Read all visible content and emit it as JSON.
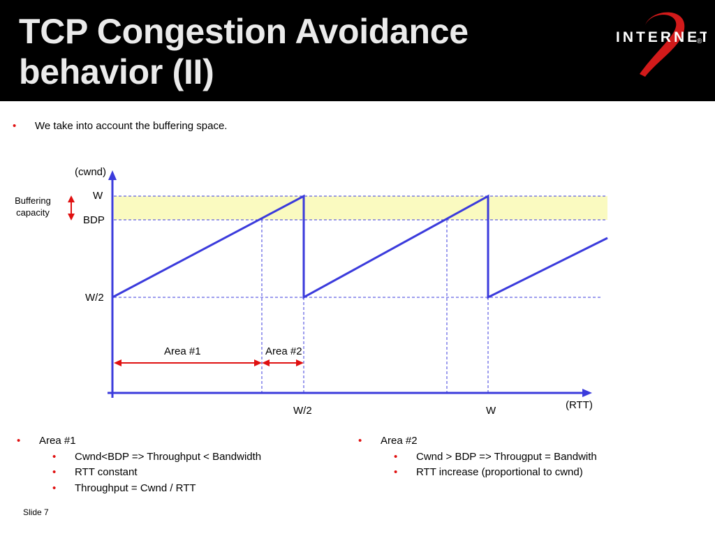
{
  "header": {
    "title_line1": "TCP Congestion Avoidance",
    "title_line2": "behavior (II)",
    "logo_text": "INTERNET",
    "logo_number": "2",
    "logo_mark": "®"
  },
  "intro_bullet": "We take into account the buffering space.",
  "diagram": {
    "y_axis_label": "(cwnd)",
    "x_axis_label": "(RTT)",
    "y_ticks": [
      "W",
      "BDP",
      "W/2"
    ],
    "x_ticks": [
      "W/2",
      "W"
    ],
    "buffer_label_line1": "Buffering",
    "buffer_label_line2": "capacity",
    "area1_label": "Area #1",
    "area2_label": "Area #2"
  },
  "left_list": {
    "heading": "Area #1",
    "items": [
      "Cwnd<BDP => Throughput < Bandwidth",
      "RTT constant",
      "Throughput = Cwnd / RTT"
    ]
  },
  "right_list": {
    "heading": "Area #2",
    "items": [
      "Cwnd > BDP => Througput = Bandwith",
      "RTT increase (proportional to cwnd)"
    ]
  },
  "footer": {
    "slide_label": "Slide 7"
  },
  "colors": {
    "header_bg": "#000000",
    "curve": "#3b3bdc",
    "bullet": "#e01010",
    "buffer_band": "#fafac0",
    "arrow": "#e01010"
  }
}
